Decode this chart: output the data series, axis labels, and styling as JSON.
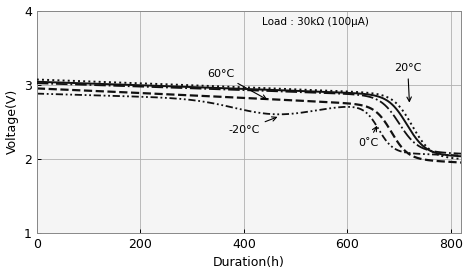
{
  "title": "",
  "xlabel": "Duration(h)",
  "ylabel": "Voltage(V)",
  "xlim": [
    0,
    820
  ],
  "ylim": [
    1,
    4
  ],
  "xticks": [
    0,
    200,
    400,
    600,
    800
  ],
  "yticks": [
    1,
    2,
    3,
    4
  ],
  "annotation_text": "Load : 30kΩ (100μA)",
  "label_20C": "20°C",
  "label_60C": "60°C",
  "label_0C": "0˚C",
  "label_m20C": "-20°C",
  "background_color": "#ffffff",
  "plot_bg_color": "#f5f5f5",
  "grid_color": "#b0b0b0",
  "line_color": "#111111"
}
